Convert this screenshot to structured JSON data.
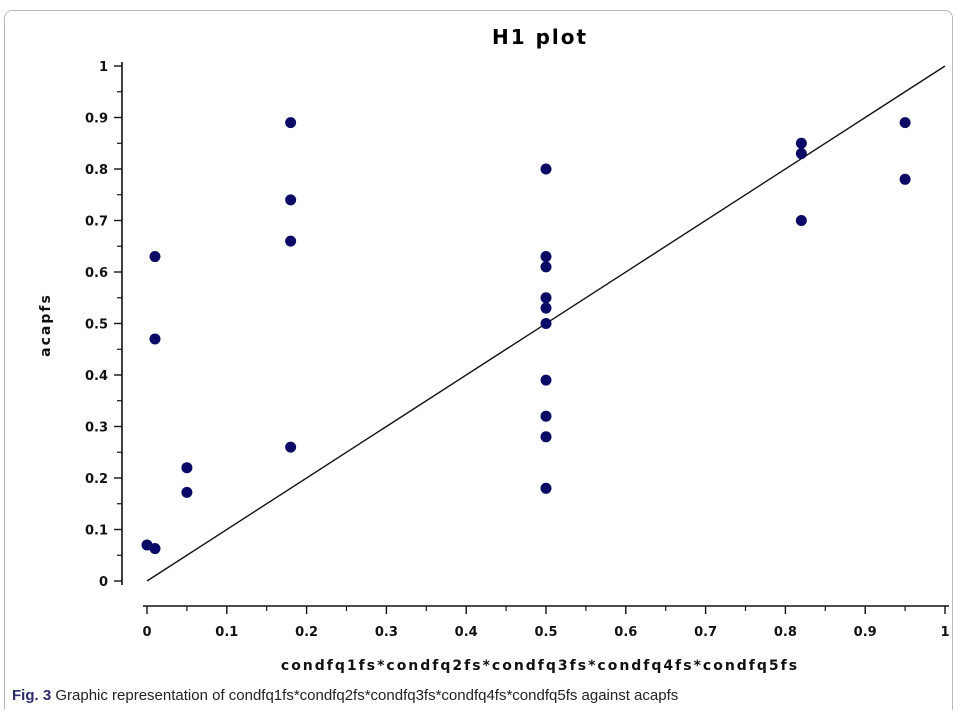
{
  "chart_data": {
    "type": "scatter",
    "title": "H1 plot",
    "xlabel": "condfq1fs*condfq2fs*condfq3fs*condfq4fs*condfq5fs",
    "ylabel": "acapfs",
    "xlim": [
      0,
      1
    ],
    "ylim": [
      0,
      1
    ],
    "x_ticks": [
      "0",
      "0.1",
      "0.2",
      "0.3",
      "0.4",
      "0.5",
      "0.6",
      "0.7",
      "0.8",
      "0.9",
      "1"
    ],
    "y_ticks": [
      "0",
      "0.1",
      "0.2",
      "0.3",
      "0.4",
      "0.5",
      "0.6",
      "0.7",
      "0.8",
      "0.9",
      "1"
    ],
    "reference_line": {
      "from": [
        0,
        0
      ],
      "to": [
        1,
        1
      ]
    },
    "point_color": "#0a0a66",
    "points": [
      {
        "x": 0.0,
        "y": 0.07
      },
      {
        "x": 0.01,
        "y": 0.063
      },
      {
        "x": 0.01,
        "y": 0.63
      },
      {
        "x": 0.01,
        "y": 0.47
      },
      {
        "x": 0.05,
        "y": 0.22
      },
      {
        "x": 0.05,
        "y": 0.172
      },
      {
        "x": 0.18,
        "y": 0.89
      },
      {
        "x": 0.18,
        "y": 0.74
      },
      {
        "x": 0.18,
        "y": 0.66
      },
      {
        "x": 0.18,
        "y": 0.26
      },
      {
        "x": 0.5,
        "y": 0.8
      },
      {
        "x": 0.5,
        "y": 0.63
      },
      {
        "x": 0.5,
        "y": 0.61
      },
      {
        "x": 0.5,
        "y": 0.55
      },
      {
        "x": 0.5,
        "y": 0.53
      },
      {
        "x": 0.5,
        "y": 0.5
      },
      {
        "x": 0.5,
        "y": 0.39
      },
      {
        "x": 0.5,
        "y": 0.32
      },
      {
        "x": 0.5,
        "y": 0.28
      },
      {
        "x": 0.5,
        "y": 0.18
      },
      {
        "x": 0.82,
        "y": 0.85
      },
      {
        "x": 0.82,
        "y": 0.83
      },
      {
        "x": 0.82,
        "y": 0.7
      },
      {
        "x": 0.95,
        "y": 0.89
      },
      {
        "x": 0.95,
        "y": 0.78
      }
    ]
  },
  "caption": {
    "label": "Fig. 3",
    "text": "Graphic representation of condfq1fs*condfq2fs*condfq3fs*condfq4fs*condfq5fs against acapfs"
  }
}
